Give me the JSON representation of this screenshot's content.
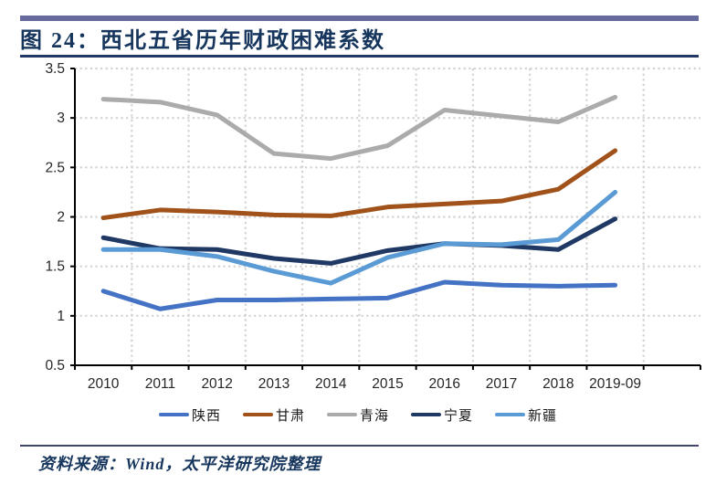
{
  "header": {
    "title": "图 24：西北五省历年财政困难系数"
  },
  "footer": {
    "source": "资料来源：Wind，太平洋研究院整理"
  },
  "colors": {
    "top_bar": "#666A9C",
    "title_text": "#17365D",
    "title_rule": "#1F3864",
    "footer_rule": "#3F436E",
    "source_text": "#17365D",
    "axis": "#000000",
    "tick_label": "#262626",
    "gridline": "#D2D2D2"
  },
  "chart_data": {
    "type": "line",
    "title": "西北五省历年财政困难系数",
    "xlabel": "",
    "ylabel": "",
    "categories": [
      "2010",
      "2011",
      "2012",
      "2013",
      "2014",
      "2015",
      "2016",
      "2017",
      "2018",
      "2019-09"
    ],
    "series": [
      {
        "name": "陕西",
        "color": "#4472C4",
        "values": [
          1.25,
          1.07,
          1.16,
          1.16,
          1.17,
          1.18,
          1.34,
          1.31,
          1.3,
          1.31
        ]
      },
      {
        "name": "甘肃",
        "color": "#A0521A",
        "values": [
          1.99,
          2.07,
          2.05,
          2.02,
          2.01,
          2.1,
          2.13,
          2.16,
          2.28,
          2.67
        ]
      },
      {
        "name": "青海",
        "color": "#ABABAB",
        "values": [
          3.19,
          3.16,
          3.03,
          2.64,
          2.59,
          2.72,
          3.08,
          3.02,
          2.96,
          3.21
        ]
      },
      {
        "name": "宁夏",
        "color": "#1F3864",
        "values": [
          1.79,
          1.68,
          1.67,
          1.58,
          1.53,
          1.66,
          1.73,
          1.71,
          1.67,
          1.98
        ]
      },
      {
        "name": "新疆",
        "color": "#5B9BD5",
        "values": [
          1.67,
          1.67,
          1.6,
          1.45,
          1.33,
          1.59,
          1.73,
          1.72,
          1.77,
          2.25
        ]
      }
    ],
    "ylim": [
      0.5,
      3.5
    ],
    "ytick_step": 0.5,
    "ytick_labels": [
      "0.5",
      "1",
      "1.5",
      "2",
      "2.5",
      "3",
      "3.5"
    ],
    "grid": "dotted horizontal lines at each 0.5; dotted vertical lines at category boundaries",
    "legend_position": "bottom"
  }
}
